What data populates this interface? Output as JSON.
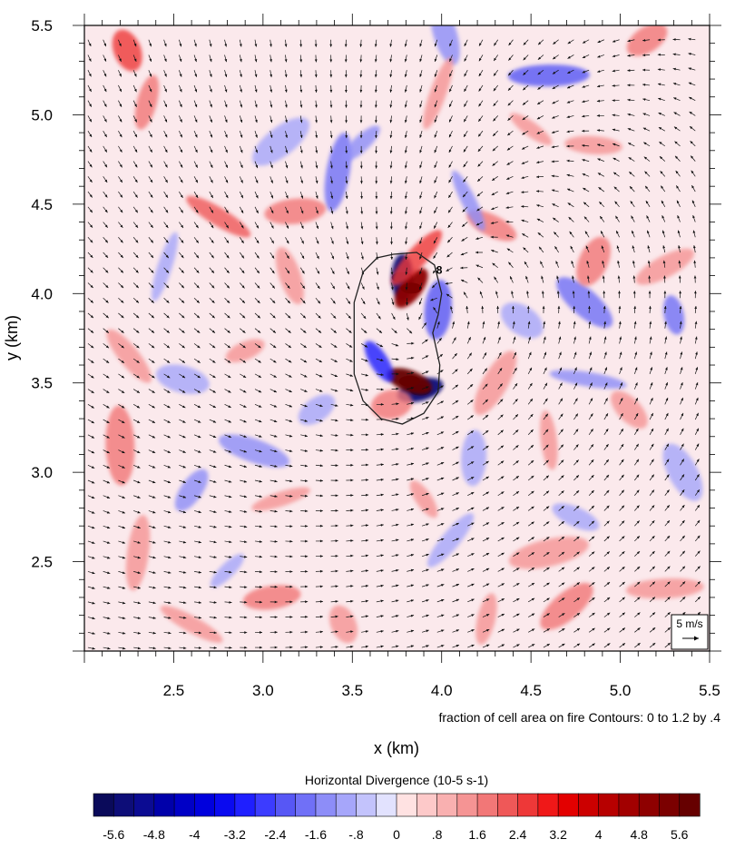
{
  "chart_data": {
    "type": "heatmap",
    "variable": "Horizontal Divergence",
    "title": "",
    "xlabel": "x (km)",
    "ylabel": "y (km)",
    "xlim": [
      2.0,
      5.5
    ],
    "ylim": [
      2.0,
      5.5
    ],
    "x_ticks": [
      2.5,
      3.0,
      3.5,
      4.0,
      4.5,
      5.0,
      5.5
    ],
    "y_ticks": [
      2.5,
      3.0,
      3.5,
      4.0,
      4.5,
      5.0,
      5.5
    ],
    "x_tick_labels": [
      "2.5",
      "3.0",
      "3.5",
      "4.0",
      "4.5",
      "5.0",
      "5.5"
    ],
    "y_tick_labels": [
      "2.5",
      "3.0",
      "3.5",
      "4.0",
      "4.5",
      "5.0",
      "5.5"
    ],
    "contour_note": "fraction of cell area on fire Contours: 0 to 1.2 by .4",
    "contour_label": "8",
    "fire_perimeter": [
      [
        3.73,
        4.22
      ],
      [
        3.86,
        4.23
      ],
      [
        3.96,
        4.16
      ],
      [
        4.0,
        4.0
      ],
      [
        3.98,
        3.88
      ],
      [
        3.95,
        3.78
      ],
      [
        3.99,
        3.6
      ],
      [
        3.98,
        3.45
      ],
      [
        3.9,
        3.33
      ],
      [
        3.78,
        3.27
      ],
      [
        3.66,
        3.3
      ],
      [
        3.56,
        3.4
      ],
      [
        3.51,
        3.55
      ],
      [
        3.51,
        3.75
      ],
      [
        3.51,
        3.95
      ],
      [
        3.56,
        4.12
      ],
      [
        3.64,
        4.2
      ],
      [
        3.73,
        4.22
      ]
    ],
    "divergence_features": [
      {
        "x": 3.78,
        "y": 4.09,
        "value": -5.6
      },
      {
        "x": 3.83,
        "y": 4.03,
        "value": 4.8
      },
      {
        "x": 3.88,
        "y": 3.46,
        "value": -5.6
      },
      {
        "x": 3.82,
        "y": 3.51,
        "value": 5.6
      },
      {
        "x": 3.65,
        "y": 3.62,
        "value": -3.2
      },
      {
        "x": 3.98,
        "y": 3.91,
        "value": -2.4
      },
      {
        "x": 3.86,
        "y": 4.2,
        "value": 2.4
      },
      {
        "x": 3.72,
        "y": 3.38,
        "value": 1.6
      },
      {
        "x": 4.28,
        "y": 4.38,
        "value": 1.6
      },
      {
        "x": 4.15,
        "y": 4.52,
        "value": -1.6
      },
      {
        "x": 3.42,
        "y": 4.68,
        "value": -2.0
      },
      {
        "x": 3.55,
        "y": 4.84,
        "value": -1.6
      },
      {
        "x": 3.18,
        "y": 4.46,
        "value": 1.6
      },
      {
        "x": 2.75,
        "y": 4.43,
        "value": 2.0
      },
      {
        "x": 2.24,
        "y": 5.36,
        "value": 2.4
      },
      {
        "x": 2.35,
        "y": 5.07,
        "value": 1.6
      },
      {
        "x": 3.1,
        "y": 4.85,
        "value": -1.2
      },
      {
        "x": 4.6,
        "y": 5.22,
        "value": -2.4
      },
      {
        "x": 4.5,
        "y": 4.92,
        "value": 1.2
      },
      {
        "x": 4.02,
        "y": 5.45,
        "value": -1.6
      },
      {
        "x": 3.98,
        "y": 5.12,
        "value": 1.2
      },
      {
        "x": 5.15,
        "y": 5.42,
        "value": 1.6
      },
      {
        "x": 4.85,
        "y": 4.83,
        "value": 1.2
      },
      {
        "x": 4.8,
        "y": 3.95,
        "value": -2.0
      },
      {
        "x": 5.3,
        "y": 3.88,
        "value": -2.0
      },
      {
        "x": 4.85,
        "y": 4.18,
        "value": 1.6
      },
      {
        "x": 5.25,
        "y": 4.15,
        "value": 1.2
      },
      {
        "x": 4.82,
        "y": 3.52,
        "value": -1.6
      },
      {
        "x": 5.05,
        "y": 3.35,
        "value": 1.2
      },
      {
        "x": 4.6,
        "y": 3.18,
        "value": 1.2
      },
      {
        "x": 4.3,
        "y": 3.5,
        "value": 1.2
      },
      {
        "x": 2.9,
        "y": 3.68,
        "value": 1.2
      },
      {
        "x": 2.55,
        "y": 3.52,
        "value": -1.2
      },
      {
        "x": 2.25,
        "y": 3.65,
        "value": 1.2
      },
      {
        "x": 2.2,
        "y": 3.15,
        "value": 1.6
      },
      {
        "x": 2.6,
        "y": 2.9,
        "value": -1.6
      },
      {
        "x": 3.1,
        "y": 2.85,
        "value": 1.2
      },
      {
        "x": 2.95,
        "y": 3.12,
        "value": -1.6
      },
      {
        "x": 3.9,
        "y": 2.85,
        "value": 1.2
      },
      {
        "x": 4.18,
        "y": 3.08,
        "value": -1.2
      },
      {
        "x": 4.05,
        "y": 2.62,
        "value": -1.2
      },
      {
        "x": 4.6,
        "y": 2.55,
        "value": 1.2
      },
      {
        "x": 4.75,
        "y": 2.75,
        "value": -1.2
      },
      {
        "x": 5.35,
        "y": 3.0,
        "value": -1.2
      },
      {
        "x": 2.3,
        "y": 2.55,
        "value": 1.2
      },
      {
        "x": 2.8,
        "y": 2.45,
        "value": -1.2
      },
      {
        "x": 3.05,
        "y": 2.3,
        "value": 1.6
      },
      {
        "x": 2.6,
        "y": 2.15,
        "value": 1.2
      },
      {
        "x": 3.45,
        "y": 2.15,
        "value": 1.2
      },
      {
        "x": 4.25,
        "y": 2.18,
        "value": 1.2
      },
      {
        "x": 4.7,
        "y": 2.25,
        "value": 1.6
      },
      {
        "x": 5.25,
        "y": 2.35,
        "value": 1.2
      },
      {
        "x": 4.45,
        "y": 3.85,
        "value": -1.2
      },
      {
        "x": 3.15,
        "y": 4.1,
        "value": 1.2
      },
      {
        "x": 2.45,
        "y": 4.15,
        "value": -1.2
      },
      {
        "x": 3.3,
        "y": 3.35,
        "value": -1.2
      }
    ],
    "colorbar": {
      "title": "Horizontal Divergence  (10-5 s-1)",
      "levels": [
        -6.0,
        -5.6,
        -5.2,
        -4.8,
        -4.4,
        -4.0,
        -3.6,
        -3.2,
        -2.8,
        -2.4,
        -2.0,
        -1.6,
        -1.2,
        -0.8,
        -0.4,
        0.0,
        0.4,
        0.8,
        1.2,
        1.6,
        2.0,
        2.4,
        2.8,
        3.2,
        3.6,
        4.0,
        4.4,
        4.8,
        5.2,
        5.6,
        6.0
      ],
      "labels": [
        "-5.6",
        "-4.8",
        "-4",
        "-3.2",
        "-2.4",
        "-1.6",
        "-.8",
        "0",
        ".8",
        "1.6",
        "2.4",
        "3.2",
        "4",
        "4.8",
        "5.6"
      ],
      "label_values": [
        -5.6,
        -4.8,
        -4.0,
        -3.2,
        -2.4,
        -1.6,
        -0.8,
        0.0,
        0.8,
        1.6,
        2.4,
        3.2,
        4.0,
        4.8,
        5.6
      ],
      "colors": [
        "#0a0a5a",
        "#0d0d78",
        "#0b0b92",
        "#0000aa",
        "#0000c6",
        "#0000dd",
        "#0a0af0",
        "#1f1fff",
        "#3c3cff",
        "#5757f5",
        "#7070f7",
        "#8d8df8",
        "#a6a6fa",
        "#c3c3fc",
        "#e2e2fe",
        "#ffe2e2",
        "#fdc9c9",
        "#f9b0b0",
        "#f59494",
        "#f27777",
        "#ef5858",
        "#ee3838",
        "#f01818",
        "#e30000",
        "#cc0000",
        "#b70000",
        "#a20000",
        "#8e0000",
        "#7b0000",
        "#660000"
      ]
    },
    "reference_vector": {
      "label": "5 m/s",
      "value": 5
    }
  }
}
